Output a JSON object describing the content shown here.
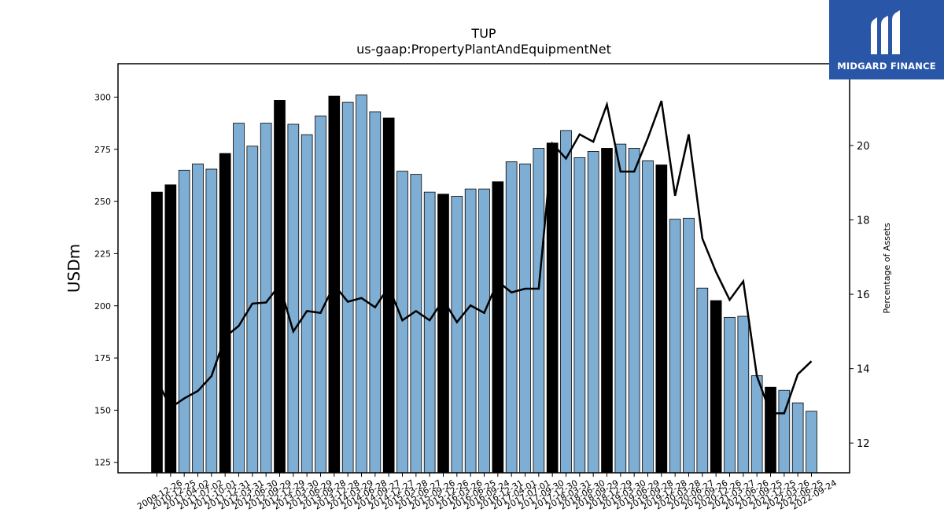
{
  "brand": {
    "name": "MIDGARD FINANCE",
    "bg_color": "#2a56a8"
  },
  "chart_data": {
    "type": "bar",
    "title": "TUP",
    "subtitle": "us-gaap:PropertyPlantAndEquipmentNet",
    "ylabel": "USDm",
    "y2label": "Percentage of Assets",
    "ylim": [
      120,
      316
    ],
    "y2lim": [
      11.2,
      22.2
    ],
    "yticks": [
      125,
      150,
      175,
      200,
      225,
      250,
      275,
      300
    ],
    "y2ticks": [
      12,
      14,
      16,
      18,
      20
    ],
    "tick_labels": [
      "2009-12-26",
      "2010-12-25",
      "2011-04-02",
      "2011-07-02",
      "2011-10-01",
      "2011-12-31",
      "2012-03-31",
      "2012-06-30",
      "2012-09-29",
      "2012-12-29",
      "2013-03-30",
      "2013-06-29",
      "2013-09-28",
      "2013-12-28",
      "2014-03-29",
      "2014-06-28",
      "2014-09-27",
      "2014-12-27",
      "2015-03-28",
      "2015-06-27",
      "2015-09-26",
      "2015-12-26",
      "2016-03-26",
      "2016-06-25",
      "2016-09-24",
      "2016-12-31",
      "2017-04-01",
      "2017-07-01",
      "2017-09-30",
      "2017-12-30",
      "2018-03-31",
      "2018-06-30",
      "2018-09-29",
      "2018-12-29",
      "2019-03-30",
      "2019-06-29",
      "2019-09-28",
      "2019-12-28",
      "2020-03-28",
      "2020-06-27",
      "2020-09-26",
      "2020-12-26",
      "2021-03-27",
      "2021-06-26",
      "2021-09-25",
      "2021-12-25",
      "2022-03-26",
      "2022-06-25",
      "2022-09-24"
    ],
    "series": [
      {
        "values": [
          254.5,
          258,
          265,
          268,
          265.5,
          273,
          287.5,
          276.5,
          287.5,
          298.5,
          287,
          282,
          291,
          300.5,
          297.5,
          301,
          293,
          290,
          264.5,
          263,
          254.5,
          253.5,
          252.5,
          256,
          256,
          259.5,
          269,
          268,
          275.5,
          278,
          284,
          271,
          274,
          275.5,
          277.5,
          275.5,
          269.5,
          267.5,
          241.5,
          242,
          208.5,
          202.5,
          194.5,
          195,
          166.5,
          161,
          159.5,
          153.5,
          149.5
        ],
        "annual": [
          true,
          true,
          false,
          false,
          false,
          true,
          false,
          false,
          false,
          true,
          false,
          false,
          false,
          true,
          false,
          false,
          false,
          true,
          false,
          false,
          false,
          true,
          false,
          false,
          false,
          true,
          false,
          false,
          false,
          true,
          false,
          false,
          false,
          true,
          false,
          false,
          false,
          true,
          false,
          false,
          false,
          true,
          false,
          false,
          false,
          true,
          false,
          false,
          false
        ],
        "color_quarter": "#7eaed3",
        "color_annual": "#000000"
      },
      {
        "axis": "right",
        "values": [
          13.7,
          12.95,
          13.2,
          13.4,
          13.8,
          14.85,
          15.15,
          15.75,
          15.78,
          16.25,
          15.0,
          15.55,
          15.5,
          16.25,
          15.8,
          15.9,
          15.65,
          16.2,
          15.3,
          15.55,
          15.3,
          15.85,
          15.25,
          15.7,
          15.5,
          16.35,
          16.05,
          16.15,
          16.15,
          20.05,
          19.65,
          20.3,
          20.1,
          21.1,
          19.3,
          19.3,
          20.2,
          21.2,
          18.65,
          20.3,
          17.5,
          16.6,
          15.85,
          16.35,
          13.8,
          12.8,
          12.8,
          13.85,
          14.2
        ],
        "color": "#000000"
      }
    ],
    "grid": false
  }
}
